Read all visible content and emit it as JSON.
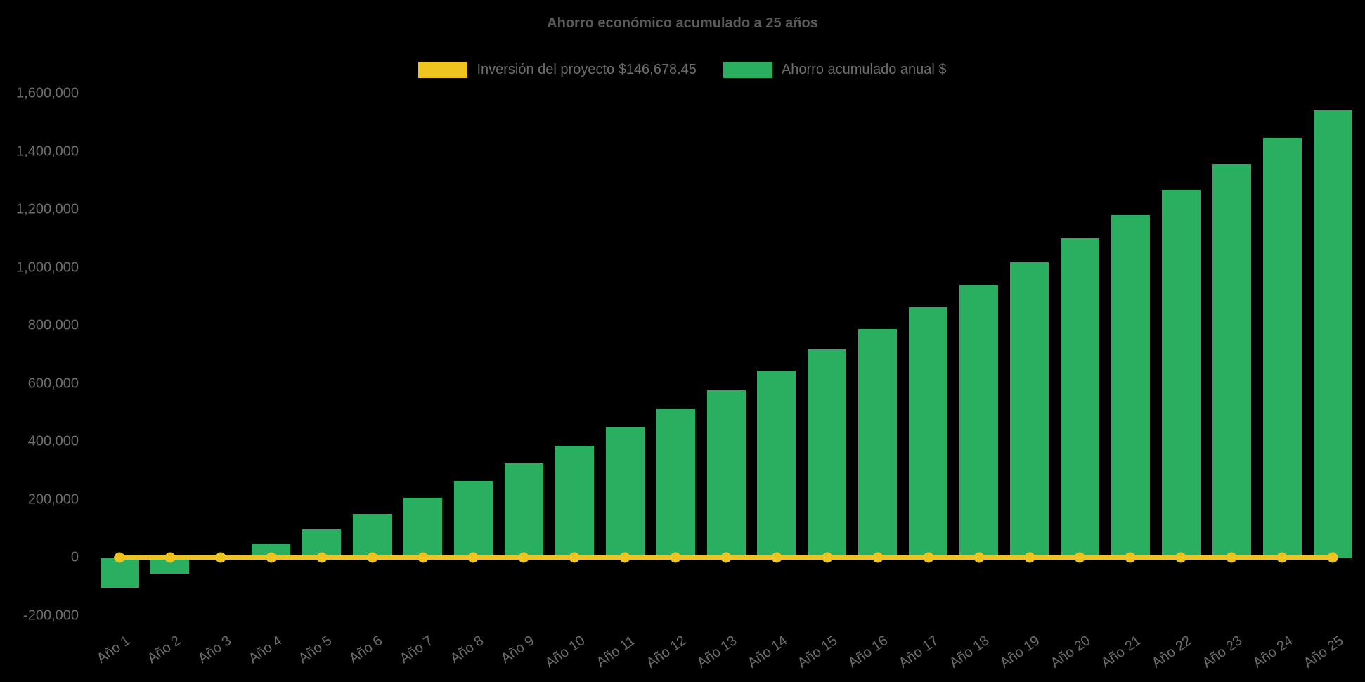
{
  "title": "Ahorro económico acumulado a 25 años",
  "legend": {
    "items": [
      {
        "label": "Inversión del proyecto $146,678.45",
        "color": "#F0C420"
      },
      {
        "label": "Ahorro acumulado anual $",
        "color": "#2AAE60"
      }
    ]
  },
  "colors": {
    "background": "#000000",
    "bar": "#2AAE60",
    "line": "#F0C420",
    "title_text": "#5a5a5a",
    "tick_text": "#6e6e6e"
  },
  "chart_data": {
    "type": "bar",
    "title": "Ahorro económico acumulado a 25 años",
    "categories": [
      "Año 1",
      "Año 2",
      "Año 3",
      "Año 4",
      "Año 5",
      "Año 6",
      "Año 7",
      "Año 8",
      "Año 9",
      "Año 10",
      "Año 11",
      "Año 12",
      "Año 13",
      "Año 14",
      "Año 15",
      "Año 16",
      "Año 17",
      "Año 18",
      "Año 19",
      "Año 20",
      "Año 21",
      "Año 22",
      "Año 23",
      "Año 24",
      "Año 25"
    ],
    "series": [
      {
        "name": "Inversión del proyecto $146,678.45",
        "type": "line",
        "color": "#F0C420",
        "values": [
          0,
          0,
          0,
          0,
          0,
          0,
          0,
          0,
          0,
          0,
          0,
          0,
          0,
          0,
          0,
          0,
          0,
          0,
          0,
          0,
          0,
          0,
          0,
          0,
          0
        ]
      },
      {
        "name": "Ahorro acumulado anual $",
        "type": "bar",
        "color": "#2AAE60",
        "values": [
          -105000,
          -55000,
          0,
          47000,
          98000,
          151000,
          205000,
          264000,
          325000,
          385000,
          448000,
          512000,
          577000,
          646000,
          718000,
          789000,
          864000,
          939000,
          1017000,
          1100000,
          1181000,
          1268000,
          1358000,
          1448000,
          1543000
        ]
      }
    ],
    "xlabel": "",
    "ylabel": "",
    "ylim": [
      -200000,
      1600000
    ],
    "ytick_step": 200000,
    "ytick_labels": [
      "-200,000",
      "0",
      "200,000",
      "400,000",
      "600,000",
      "800,000",
      "1,000,000",
      "1,200,000",
      "1,400,000",
      "1,600,000"
    ],
    "grid": false,
    "legend_position": "top"
  }
}
